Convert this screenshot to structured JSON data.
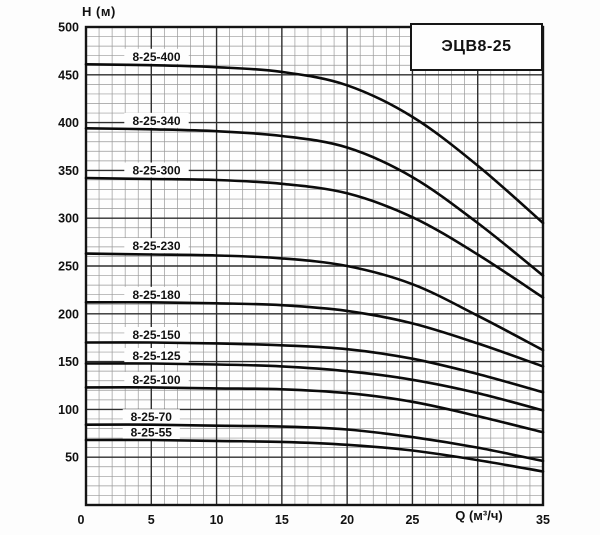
{
  "page": {
    "background": "#fdfdfd"
  },
  "chart_data": {
    "type": "line",
    "title": "ЭЦВ8-25",
    "xlabel": "Q (м³/ч)",
    "ylabel": "Н (м)",
    "xlim": [
      0,
      35
    ],
    "ylim": [
      0,
      500
    ],
    "grid": true,
    "x_minor_step": 1,
    "x_major_step": 5,
    "y_minor_step": 10,
    "y_major_step": 50,
    "x_tick_values": [
      0,
      5,
      10,
      15,
      20,
      25,
      35
    ],
    "x_tick_labels": [
      "0",
      "5",
      "10",
      "15",
      "20",
      "25",
      "35"
    ],
    "xlabel_at_x": 30,
    "y_tick_values": [
      50,
      100,
      150,
      200,
      250,
      300,
      350,
      400,
      450,
      500
    ],
    "legend_position": "inline-labels",
    "x": [
      0,
      5,
      10,
      15,
      20,
      25,
      30,
      35
    ],
    "series": [
      {
        "name": "8-25-400",
        "values": [
          461,
          460,
          458,
          453,
          439,
          406,
          355,
          295
        ],
        "label_q": 5.4
      },
      {
        "name": "8-25-340",
        "values": [
          394,
          393,
          391,
          386,
          374,
          343,
          295,
          240
        ],
        "label_q": 5.4
      },
      {
        "name": "8-25-300",
        "values": [
          342,
          341,
          340,
          336,
          326,
          301,
          262,
          217
        ],
        "label_q": 5.4
      },
      {
        "name": "8-25-230",
        "values": [
          263,
          262,
          261,
          258,
          250,
          231,
          198,
          162
        ],
        "label_q": 5.4
      },
      {
        "name": "8-25-180",
        "values": [
          212,
          212,
          211,
          209,
          203,
          190,
          169,
          145
        ],
        "label_q": 5.4
      },
      {
        "name": "8-25-150",
        "values": [
          170,
          170,
          169,
          167,
          163,
          153,
          137,
          118
        ],
        "label_q": 5.4
      },
      {
        "name": "8-25-125",
        "values": [
          148,
          148,
          147,
          145,
          140,
          131,
          117,
          99
        ],
        "label_q": 5.4
      },
      {
        "name": "8-25-100",
        "values": [
          123,
          123,
          122,
          121,
          117,
          108,
          93,
          76
        ],
        "label_q": 5.4
      },
      {
        "name": "8-25-70",
        "values": [
          84,
          84,
          83,
          82,
          79,
          71,
          60,
          46
        ],
        "label_q": 5.0
      },
      {
        "name": "8-25-55",
        "values": [
          68,
          68,
          67,
          66,
          63,
          57,
          47,
          35
        ],
        "label_q": 5.0
      }
    ],
    "colors": {
      "curve": "#0b0b0b",
      "grid_minor": "#989898",
      "grid_major": "#2e2e2e",
      "frame": "#141414",
      "text": "#111111",
      "plot_background": "#fefefe",
      "label_halo": "#fefefe"
    }
  }
}
